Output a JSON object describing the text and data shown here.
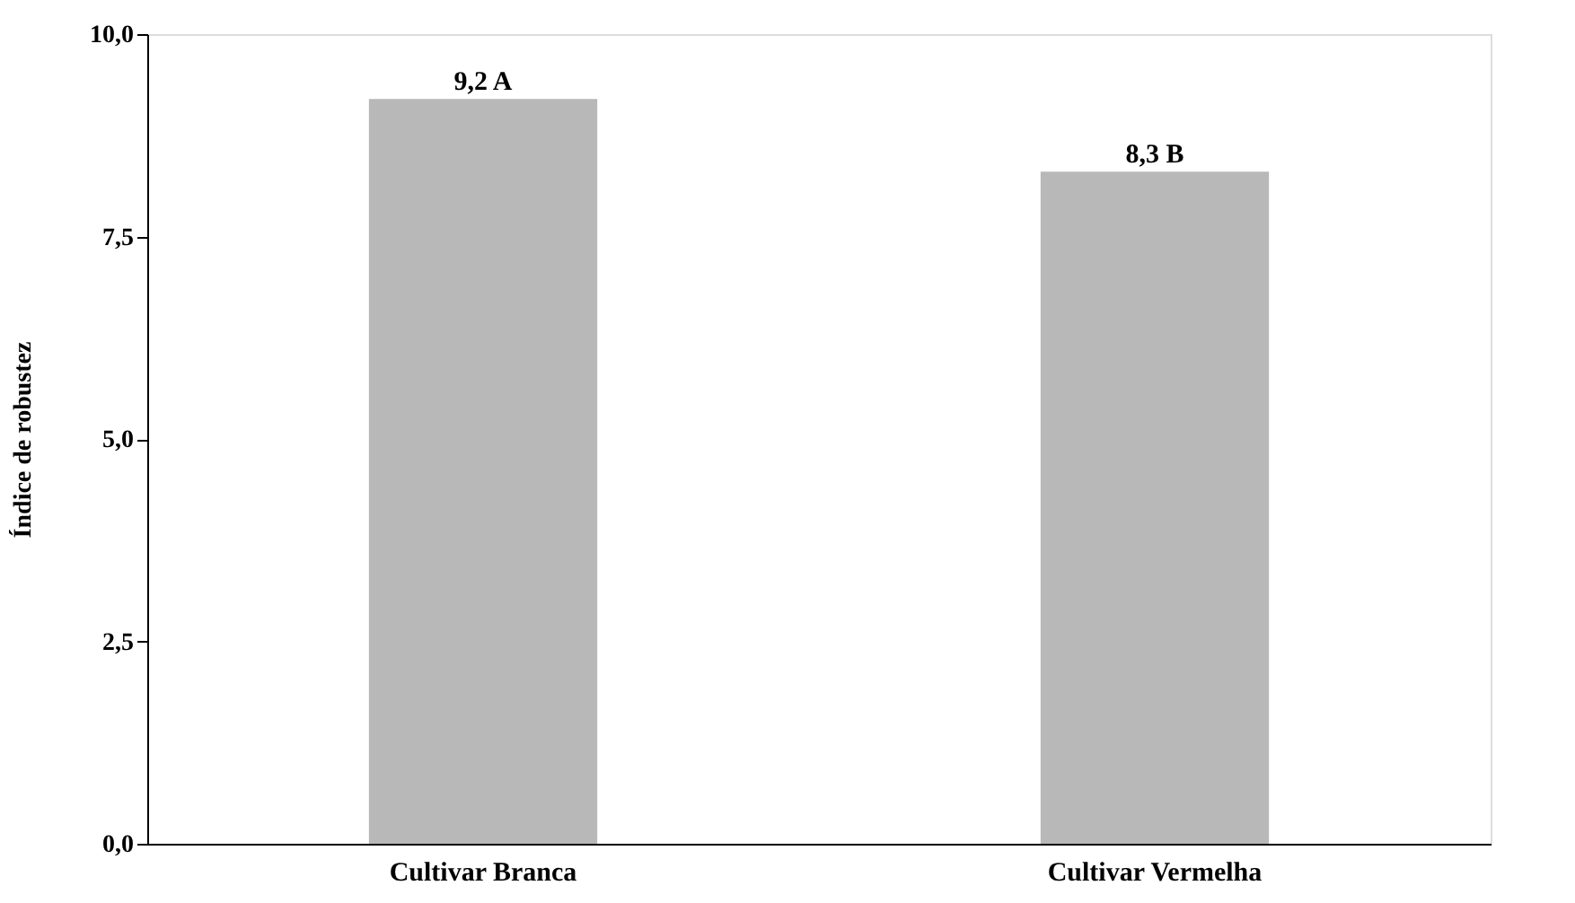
{
  "chart_data": {
    "type": "bar",
    "ylabel": "Índice de robustez",
    "categories": [
      "Cultivar Branca",
      "Cultivar Vermelha"
    ],
    "values": [
      9.2,
      8.3
    ],
    "color": "#b8b8b8",
    "value_labels": [
      "9,2 A",
      "8,3 B"
    ],
    "ylim": [
      0,
      10
    ],
    "yticks": [
      {
        "value": 0,
        "label": "0,0"
      },
      {
        "value": 2.5,
        "label": "2,5"
      },
      {
        "value": 5,
        "label": "5,0"
      },
      {
        "value": 7.5,
        "label": "7,5"
      },
      {
        "value": 10,
        "label": "10,0"
      }
    ],
    "grid": false
  }
}
